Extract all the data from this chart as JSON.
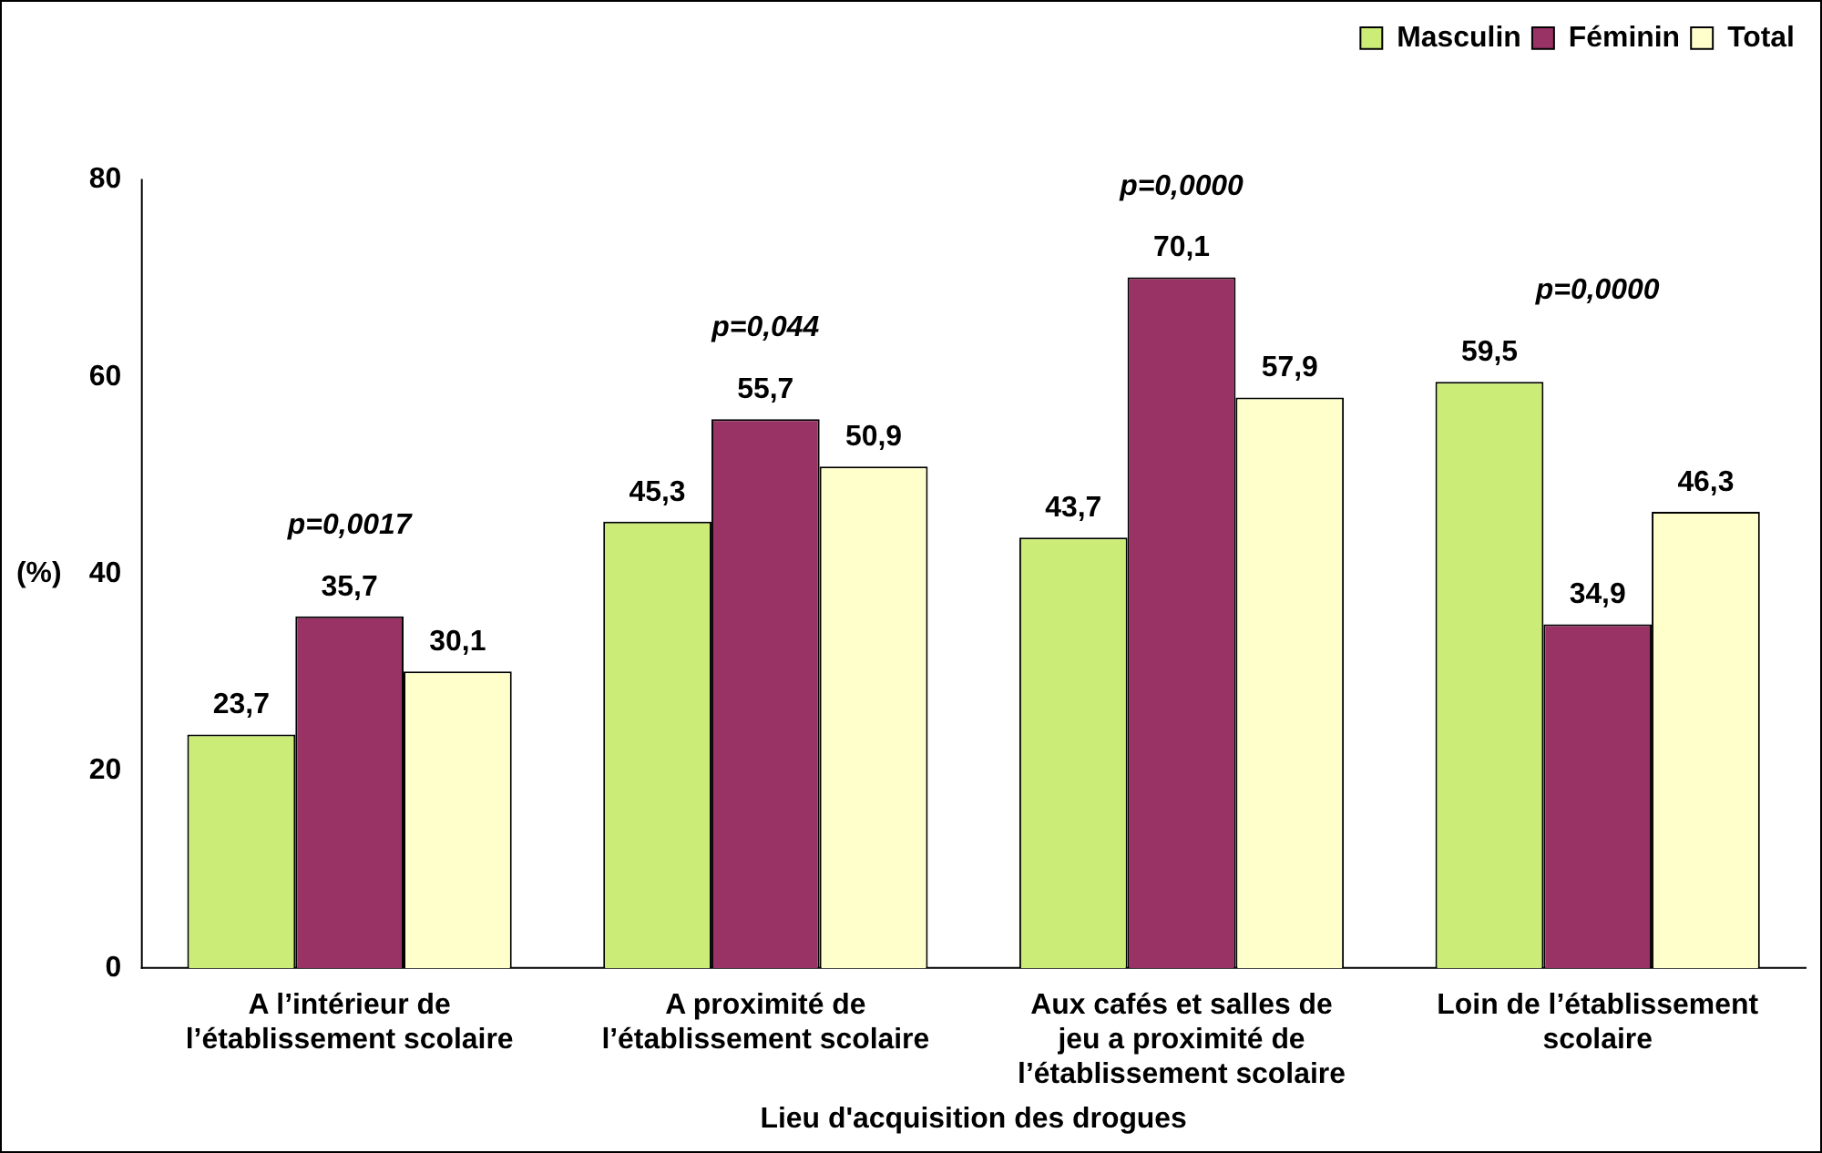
{
  "chart_data": {
    "type": "bar",
    "xlabel": "Lieu d'acquisition des drogues",
    "ylabel": "(%)",
    "categories": [
      "A l’intérieur de l’établissement scolaire",
      "A proximité de l’établissement scolaire",
      "Aux cafés et salles de jeu a proximité de l’établissement scolaire",
      "Loin de l’établissement scolaire"
    ],
    "series": [
      {
        "name": "Masculin",
        "color": "#ccec78",
        "values": [
          23.7,
          45.3,
          43.7,
          59.5
        ],
        "value_labels": [
          "23,7",
          "45,3",
          "43,7",
          "59,5"
        ]
      },
      {
        "name": "Féminin",
        "color": "#993366",
        "values": [
          35.7,
          55.7,
          70.1,
          34.9
        ],
        "value_labels": [
          "35,7",
          "55,7",
          "70,1",
          "34,9"
        ]
      },
      {
        "name": "Total",
        "color": "#ffffcc",
        "values": [
          30.1,
          50.9,
          57.9,
          46.3
        ],
        "value_labels": [
          "30,1",
          "50,9",
          "57,9",
          "46,3"
        ]
      }
    ],
    "ylim": [
      0,
      80
    ],
    "yticks": [
      0,
      20,
      40,
      60,
      80
    ],
    "grid": false,
    "legend": "top right",
    "annotations": [
      "p=0,0017",
      "p=0,044",
      "p=0,0000",
      "p=0,0000"
    ]
  }
}
